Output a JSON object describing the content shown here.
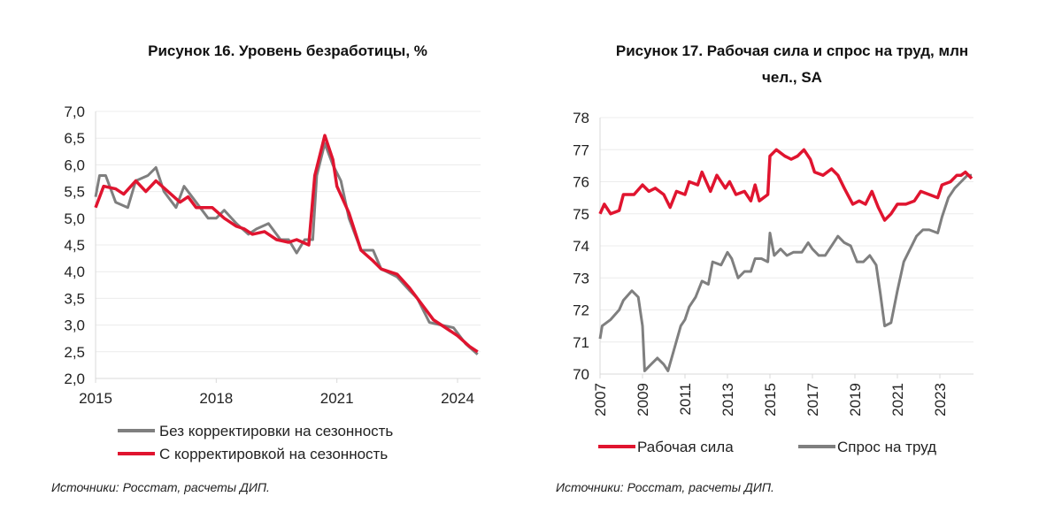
{
  "colors": {
    "red": "#e0142f",
    "gray": "#7f7f7f"
  },
  "chart_data": [
    {
      "type": "line",
      "title": "Рисунок 16. Уровень безработицы, %",
      "source": "Источники: Росстат, расчеты ДИП.",
      "ylim": [
        2.0,
        7.0
      ],
      "xlim": [
        2015,
        2024.7
      ],
      "yticks": [
        "2,0",
        "2,5",
        "3,0",
        "3,5",
        "4,0",
        "4,5",
        "5,0",
        "5,5",
        "6,0",
        "6,5",
        "7,0"
      ],
      "xticks": [
        "2015",
        "2018",
        "2021",
        "2024"
      ],
      "grid": true,
      "legend": "bottom",
      "series": [
        {
          "name": "Без корректировки на сезонность",
          "color": "gray",
          "x": [
            2015.0,
            2015.1,
            2015.25,
            2015.5,
            2015.8,
            2016.0,
            2016.3,
            2016.5,
            2016.7,
            2017.0,
            2017.2,
            2017.5,
            2017.8,
            2018.0,
            2018.2,
            2018.5,
            2018.8,
            2019.0,
            2019.3,
            2019.6,
            2019.8,
            2020.0,
            2020.2,
            2020.4,
            2020.5,
            2020.7,
            2020.9,
            2021.1,
            2021.3,
            2021.6,
            2021.9,
            2022.1,
            2022.5,
            2022.8,
            2023.0,
            2023.3,
            2023.6,
            2023.9,
            2024.2,
            2024.5
          ],
          "y": [
            5.4,
            5.8,
            5.8,
            5.3,
            5.2,
            5.7,
            5.8,
            5.95,
            5.5,
            5.2,
            5.6,
            5.3,
            5.0,
            5.0,
            5.15,
            4.9,
            4.7,
            4.8,
            4.9,
            4.6,
            4.6,
            4.35,
            4.6,
            4.6,
            5.8,
            6.4,
            6.0,
            5.7,
            5.0,
            4.4,
            4.4,
            4.05,
            3.9,
            3.65,
            3.5,
            3.05,
            3.0,
            2.95,
            2.65,
            2.45
          ]
        },
        {
          "name": "С корректировкой на сезонность",
          "color": "red",
          "x": [
            2015.0,
            2015.2,
            2015.5,
            2015.7,
            2016.0,
            2016.25,
            2016.5,
            2016.8,
            2017.1,
            2017.3,
            2017.5,
            2017.9,
            2018.2,
            2018.5,
            2018.7,
            2018.9,
            2019.2,
            2019.5,
            2019.8,
            2020.0,
            2020.3,
            2020.45,
            2020.7,
            2020.9,
            2021.0,
            2021.3,
            2021.6,
            2021.9,
            2022.1,
            2022.5,
            2022.8,
            2023.1,
            2023.4,
            2023.7,
            2024.0,
            2024.3,
            2024.5
          ],
          "y": [
            5.2,
            5.6,
            5.55,
            5.45,
            5.7,
            5.5,
            5.7,
            5.5,
            5.3,
            5.4,
            5.2,
            5.2,
            5.0,
            4.85,
            4.8,
            4.7,
            4.75,
            4.6,
            4.55,
            4.6,
            4.5,
            5.8,
            6.55,
            6.1,
            5.6,
            5.1,
            4.4,
            4.2,
            4.05,
            3.95,
            3.7,
            3.4,
            3.1,
            2.95,
            2.8,
            2.6,
            2.5
          ]
        }
      ]
    },
    {
      "type": "line",
      "title": "Рисунок 17. Рабочая сила и спрос на труд, млн",
      "title_line2": "чел., SA",
      "source": "Источники: Росстат, расчеты ДИП.",
      "ylim": [
        70,
        78
      ],
      "xlim": [
        2007,
        2024.8
      ],
      "yticks": [
        "70",
        "71",
        "72",
        "73",
        "74",
        "75",
        "76",
        "77",
        "78"
      ],
      "xticks": [
        "2007",
        "2009",
        "2011",
        "2013",
        "2015",
        "2017",
        "2019",
        "2021",
        "2023"
      ],
      "grid": true,
      "legend": "bottom",
      "series": [
        {
          "name": "Рабочая сила",
          "color": "red",
          "x": [
            2007.0,
            2007.2,
            2007.5,
            2007.9,
            2008.1,
            2008.6,
            2009.0,
            2009.3,
            2009.6,
            2010.0,
            2010.3,
            2010.6,
            2011.0,
            2011.2,
            2011.6,
            2011.8,
            2012.2,
            2012.5,
            2012.9,
            2013.1,
            2013.4,
            2013.8,
            2014.1,
            2014.3,
            2014.5,
            2014.9,
            2015.0,
            2015.3,
            2015.7,
            2016.0,
            2016.3,
            2016.6,
            2016.9,
            2017.1,
            2017.5,
            2017.9,
            2018.2,
            2018.5,
            2018.9,
            2019.2,
            2019.5,
            2019.8,
            2020.1,
            2020.4,
            2020.7,
            2021.0,
            2021.4,
            2021.8,
            2022.1,
            2022.5,
            2022.9,
            2023.1,
            2023.5,
            2023.8,
            2024.0,
            2024.2,
            2024.5
          ],
          "y": [
            75.0,
            75.3,
            75.0,
            75.1,
            75.6,
            75.6,
            75.9,
            75.7,
            75.8,
            75.6,
            75.2,
            75.7,
            75.6,
            76.0,
            75.9,
            76.3,
            75.7,
            76.2,
            75.8,
            76.0,
            75.6,
            75.7,
            75.4,
            75.9,
            75.4,
            75.6,
            76.8,
            77.0,
            76.8,
            76.7,
            76.8,
            77.0,
            76.7,
            76.3,
            76.2,
            76.4,
            76.2,
            75.8,
            75.3,
            75.4,
            75.3,
            75.7,
            75.2,
            74.8,
            75.0,
            75.3,
            75.3,
            75.4,
            75.7,
            75.6,
            75.5,
            75.9,
            76.0,
            76.2,
            76.2,
            76.3,
            76.1
          ]
        },
        {
          "name": "Спрос на труд",
          "color": "gray",
          "x": [
            2007.0,
            2007.1,
            2007.5,
            2007.9,
            2008.1,
            2008.5,
            2008.8,
            2009.0,
            2009.1,
            2009.4,
            2009.7,
            2010.0,
            2010.2,
            2010.5,
            2010.8,
            2011.0,
            2011.2,
            2011.5,
            2011.8,
            2012.1,
            2012.3,
            2012.7,
            2013.0,
            2013.2,
            2013.5,
            2013.8,
            2014.1,
            2014.3,
            2014.6,
            2014.9,
            2015.0,
            2015.2,
            2015.5,
            2015.8,
            2016.1,
            2016.5,
            2016.8,
            2017.0,
            2017.3,
            2017.6,
            2018.0,
            2018.2,
            2018.5,
            2018.8,
            2019.1,
            2019.4,
            2019.7,
            2020.0,
            2020.2,
            2020.4,
            2020.7,
            2021.0,
            2021.3,
            2021.6,
            2021.9,
            2022.2,
            2022.5,
            2022.9,
            2023.1,
            2023.4,
            2023.7,
            2024.0,
            2024.3,
            2024.5
          ],
          "y": [
            71.1,
            71.5,
            71.7,
            72.0,
            72.3,
            72.6,
            72.4,
            71.5,
            70.1,
            70.3,
            70.5,
            70.3,
            70.1,
            70.8,
            71.5,
            71.7,
            72.1,
            72.4,
            72.9,
            72.8,
            73.5,
            73.4,
            73.8,
            73.6,
            73.0,
            73.2,
            73.2,
            73.6,
            73.6,
            73.5,
            74.4,
            73.7,
            73.9,
            73.7,
            73.8,
            73.8,
            74.1,
            73.9,
            73.7,
            73.7,
            74.1,
            74.3,
            74.1,
            74.0,
            73.5,
            73.5,
            73.7,
            73.4,
            72.5,
            71.5,
            71.6,
            72.6,
            73.5,
            73.9,
            74.3,
            74.5,
            74.5,
            74.4,
            74.9,
            75.5,
            75.8,
            76.0,
            76.2,
            76.2
          ]
        }
      ]
    }
  ]
}
